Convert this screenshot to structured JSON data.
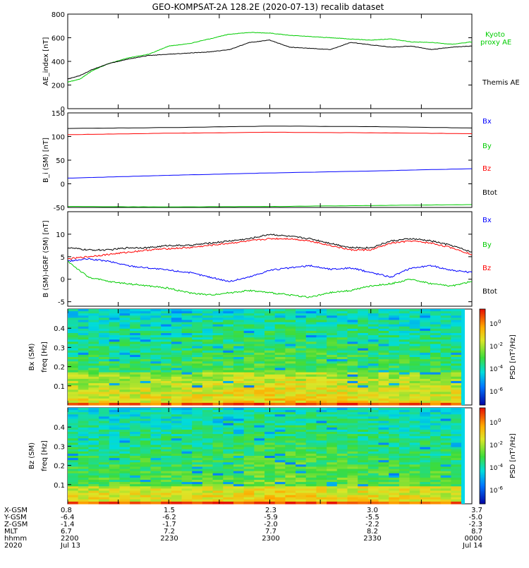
{
  "title": "GEO-KOMPSAT-2A 128.2E (2020-07-13) recalib dataset",
  "colors": {
    "black": "#000000",
    "green": "#00cc00",
    "blue": "#0000ff",
    "red": "#ff0000"
  },
  "chart_data": [
    {
      "type": "line",
      "panel": "ae_index",
      "ylabel": "AE_index [nT]",
      "ylim": [
        0,
        800
      ],
      "yticks": [
        0,
        200,
        400,
        600,
        800
      ],
      "x_time_hhmm": [
        "2200",
        "2215",
        "2230",
        "2245",
        "2300",
        "2315",
        "2330",
        "2345",
        "0000"
      ],
      "series": [
        {
          "name": "Kyoto proxy AE",
          "color": "#00cc00",
          "x": [
            0,
            0.03,
            0.06,
            0.1,
            0.15,
            0.2,
            0.25,
            0.3,
            0.35,
            0.4,
            0.45,
            0.5,
            0.55,
            0.6,
            0.65,
            0.7,
            0.75,
            0.8,
            0.85,
            0.9,
            0.95,
            1.0
          ],
          "values": [
            225,
            250,
            320,
            380,
            430,
            460,
            530,
            550,
            590,
            630,
            645,
            640,
            620,
            610,
            600,
            590,
            580,
            590,
            565,
            560,
            545,
            565
          ]
        },
        {
          "name": "Themis AE",
          "color": "#000000",
          "x": [
            0,
            0.03,
            0.06,
            0.1,
            0.15,
            0.2,
            0.25,
            0.3,
            0.35,
            0.4,
            0.45,
            0.5,
            0.55,
            0.6,
            0.65,
            0.7,
            0.75,
            0.8,
            0.85,
            0.9,
            0.95,
            1.0
          ],
          "values": [
            250,
            280,
            330,
            380,
            420,
            450,
            460,
            470,
            480,
            500,
            560,
            580,
            520,
            510,
            500,
            560,
            540,
            520,
            530,
            500,
            520,
            530
          ]
        }
      ]
    },
    {
      "type": "line",
      "panel": "b_sm",
      "ylabel": "B_i (SM) [nT]",
      "ylim": [
        -50,
        150
      ],
      "yticks": [
        -50,
        0,
        50,
        100,
        150
      ],
      "series": [
        {
          "name": "Bx",
          "color": "#0000ff",
          "x": [
            0,
            0.25,
            0.5,
            0.75,
            1.0
          ],
          "values": [
            12,
            18,
            23,
            27,
            32
          ]
        },
        {
          "name": "By",
          "color": "#00cc00",
          "x": [
            0,
            0.25,
            0.5,
            0.75,
            1.0
          ],
          "values": [
            -48,
            -49,
            -48,
            -46,
            -44
          ]
        },
        {
          "name": "Bz",
          "color": "#ff0000",
          "x": [
            0,
            0.25,
            0.5,
            0.75,
            1.0
          ],
          "values": [
            104,
            107,
            109,
            108,
            106
          ]
        },
        {
          "name": "Btot",
          "color": "#000000",
          "x": [
            0,
            0.25,
            0.5,
            0.75,
            1.0
          ],
          "values": [
            117,
            119,
            122,
            121,
            118
          ]
        }
      ]
    },
    {
      "type": "line",
      "panel": "b_minus_igrf",
      "ylabel": "B (SM)-IGRF (SM) [nT]",
      "ylim": [
        -6,
        15
      ],
      "yticks": [
        -5,
        0,
        5,
        10
      ],
      "series": [
        {
          "name": "Bx",
          "color": "#0000ff",
          "x": [
            0,
            0.05,
            0.1,
            0.15,
            0.2,
            0.25,
            0.3,
            0.35,
            0.4,
            0.45,
            0.5,
            0.55,
            0.6,
            0.65,
            0.7,
            0.75,
            0.8,
            0.85,
            0.9,
            0.95,
            1.0
          ],
          "values": [
            4,
            4.5,
            4,
            3,
            2.5,
            2,
            1.5,
            0.5,
            -0.5,
            0.5,
            2,
            2.5,
            3,
            2.2,
            2.5,
            1.5,
            0.5,
            2.5,
            3,
            2,
            1.5
          ]
        },
        {
          "name": "By",
          "color": "#00cc00",
          "x": [
            0,
            0.05,
            0.1,
            0.15,
            0.2,
            0.25,
            0.3,
            0.35,
            0.4,
            0.45,
            0.5,
            0.55,
            0.6,
            0.65,
            0.7,
            0.75,
            0.8,
            0.85,
            0.9,
            0.95,
            1.0
          ],
          "values": [
            4,
            0.5,
            -0.5,
            -1,
            -1.5,
            -2,
            -3,
            -3.5,
            -3,
            -2.5,
            -3,
            -3.5,
            -4,
            -3,
            -2.5,
            -1.5,
            -1,
            0,
            -1,
            -1.5,
            -0.5
          ]
        },
        {
          "name": "Bz",
          "color": "#ff0000",
          "x": [
            0,
            0.05,
            0.1,
            0.15,
            0.2,
            0.25,
            0.3,
            0.35,
            0.4,
            0.45,
            0.5,
            0.55,
            0.6,
            0.65,
            0.7,
            0.75,
            0.8,
            0.85,
            0.9,
            0.95,
            1.0
          ],
          "values": [
            4.5,
            5,
            5.5,
            6,
            6.5,
            6.8,
            7,
            7.5,
            8,
            8.5,
            9,
            9,
            8.5,
            7.5,
            6.5,
            6.5,
            8,
            8.5,
            8,
            7,
            5.5
          ]
        },
        {
          "name": "Btot",
          "color": "#000000",
          "x": [
            0,
            0.05,
            0.1,
            0.15,
            0.2,
            0.25,
            0.3,
            0.35,
            0.4,
            0.45,
            0.5,
            0.55,
            0.6,
            0.65,
            0.7,
            0.75,
            0.8,
            0.85,
            0.9,
            0.95,
            1.0
          ],
          "values": [
            7,
            6.5,
            6.5,
            7,
            7,
            7.5,
            7.5,
            8,
            8.5,
            9,
            10,
            9.5,
            9,
            8,
            7,
            7,
            8.5,
            9,
            8.5,
            7.5,
            6
          ]
        }
      ]
    },
    {
      "type": "heatmap",
      "panel": "bx_spectrogram",
      "ylabel_outer": "Bx (SM)",
      "ylabel": "freq [Hz]",
      "ylim": [
        0,
        0.5
      ],
      "yticks": [
        0.1,
        0.2,
        0.3,
        0.4
      ],
      "colorbar": {
        "label": "PSD [nT²/Hz]",
        "ticks_exponent": [
          0,
          -2,
          -4,
          -6
        ]
      },
      "structure_note": "Lowest frequencies (<0.02 Hz) red/orange, 0.02-0.17 Hz yellow/orange, higher frequencies green with cyan/blue stripes."
    },
    {
      "type": "heatmap",
      "panel": "bz_spectrogram",
      "ylabel_outer": "Bz (SM)",
      "ylabel": "freq [Hz]",
      "ylim": [
        0,
        0.5
      ],
      "yticks": [
        0.1,
        0.2,
        0.3,
        0.4
      ],
      "colorbar": {
        "label": "PSD [nT²/Hz]",
        "ticks_exponent": [
          0,
          -2,
          -4,
          -6
        ]
      },
      "structure_note": "Lowest frequencies red, 0.02-0.1 Hz yellow/orange, higher frequencies green/cyan with blue stripes."
    }
  ],
  "legend_ae": {
    "kyoto_line1": "Kyoto",
    "kyoto_line2": "proxy AE",
    "themis": "Themis AE"
  },
  "legend_components": {
    "bx": "Bx",
    "by": "By",
    "bz": "Bz",
    "btot": "Btot"
  },
  "psd_tick_mantissa": "10",
  "axis_footer": {
    "labels": [
      "X-GSM",
      "Y-GSM",
      "Z-GSM",
      "MLT",
      "hhmm",
      "2020"
    ],
    "columns": [
      [
        "0.8",
        "-6.4",
        "-1.4",
        "6.7",
        "2200",
        "Jul 13"
      ],
      [
        "1.5",
        "-6.2",
        "-1.7",
        "7.2",
        "2230",
        ""
      ],
      [
        "2.3",
        "-5.9",
        "-2.0",
        "7.7",
        "2300",
        ""
      ],
      [
        "3.0",
        "-5.5",
        "-2.2",
        "8.2",
        "2330",
        ""
      ],
      [
        "3.7",
        "-5.0",
        "-2.3",
        "8.7",
        "0000",
        "Jul 14"
      ]
    ]
  }
}
